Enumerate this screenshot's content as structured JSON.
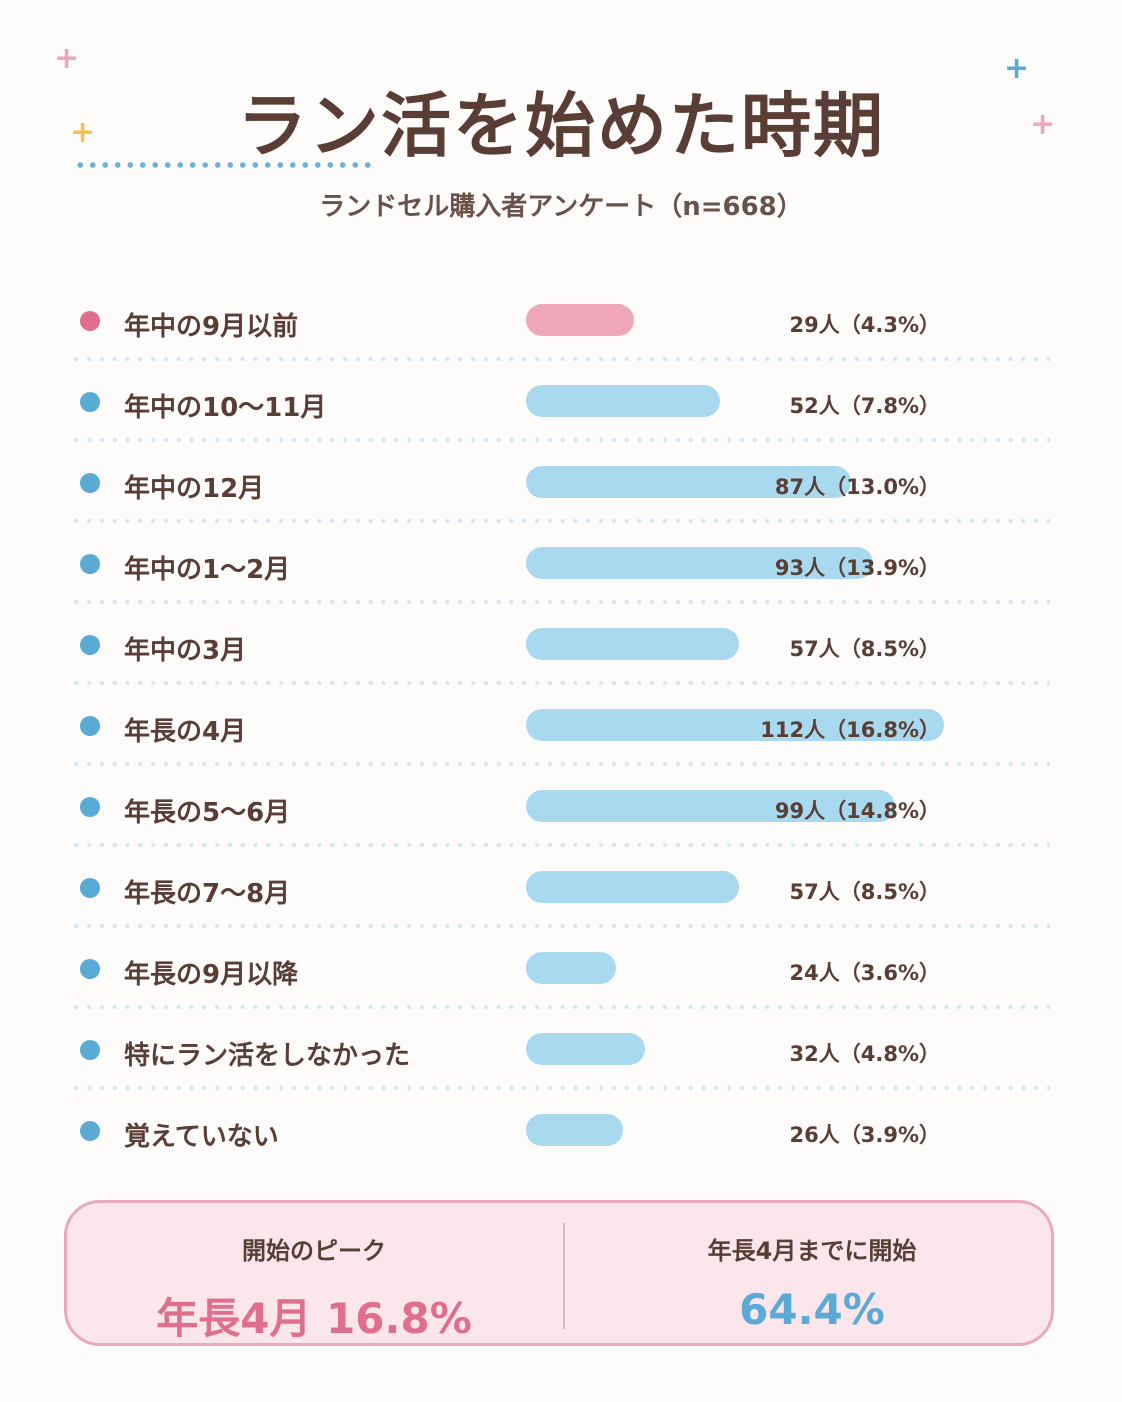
{
  "title": "ラン活を始めた時期",
  "subtitle": "ランドセル購入者アンケート（n=668）",
  "colors": {
    "highlight": "#df6f8f",
    "highlight_bar": "#f1a7ba",
    "normal": "#5aaad6",
    "normal_bar": "#a9d9ef",
    "text": "#5a3e36",
    "sparkle_pink": "#f0a5bb",
    "sparkle_yellow": "#f2c44f",
    "sparkle_blue": "#5aaad6"
  },
  "chart_data": {
    "type": "bar",
    "orientation": "horizontal",
    "unit": "人",
    "categories": [
      "年中の9月以前",
      "年中の10〜11月",
      "年中の12月",
      "年中の1〜2月",
      "年中の3月",
      "年長の4月",
      "年長の5〜6月",
      "年長の7〜8月",
      "年長の9月以降",
      "特にラン活をしなかった",
      "覚えていない"
    ],
    "values": [
      29,
      52,
      87,
      93,
      57,
      112,
      99,
      57,
      24,
      32,
      26
    ],
    "percents": [
      "4.3%",
      "7.8%",
      "13.0%",
      "13.9%",
      "8.5%",
      "16.8%",
      "14.8%",
      "8.5%",
      "3.6%",
      "4.8%",
      "3.9%"
    ],
    "value_labels": [
      "29人（4.3%）",
      "52人（7.8%）",
      "87人（13.0%）",
      "93人（13.9%）",
      "57人（8.5%）",
      "112人（16.8%）",
      "99人（14.8%）",
      "57人（8.5%）",
      "24人（3.6%）",
      "32人（4.8%）",
      "26人（3.9%）"
    ],
    "highlight_index": 0,
    "xlim": [
      0,
      112
    ],
    "grid": false
  },
  "summary": {
    "peak_label": "開始のピーク",
    "peak_value": "年長4月 16.8%",
    "cumulative_label": "年長4月までに開始",
    "cumulative_value": "64.4%"
  }
}
